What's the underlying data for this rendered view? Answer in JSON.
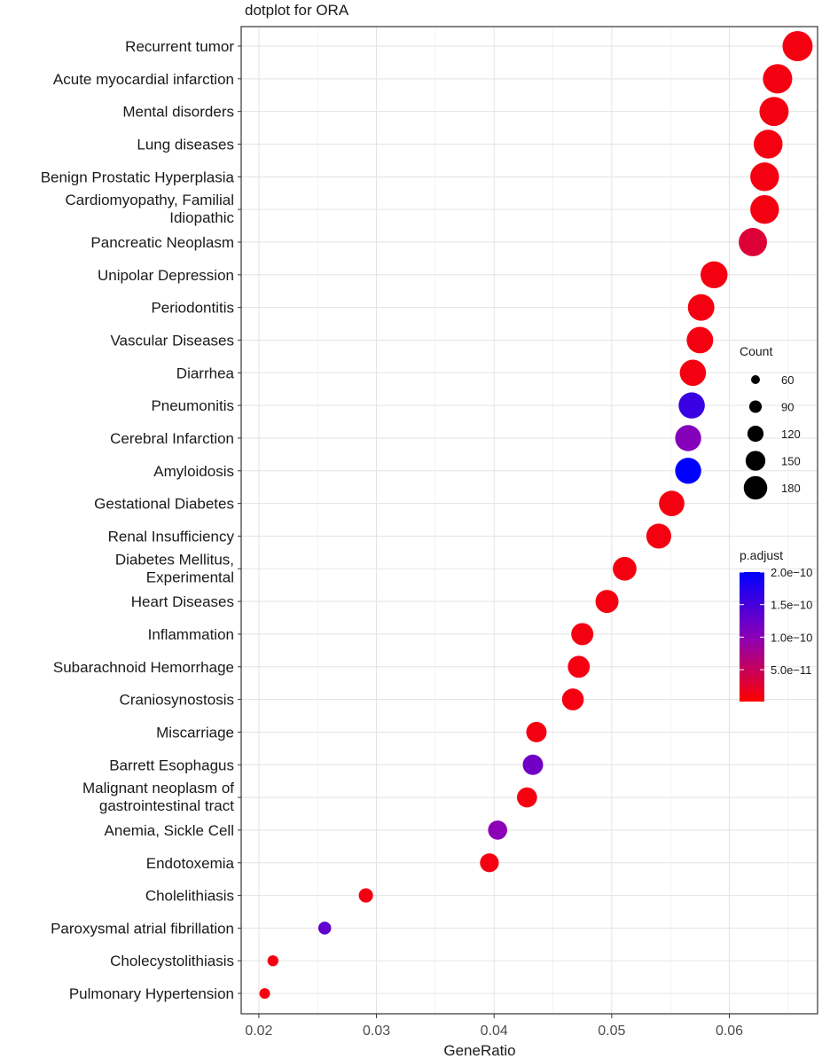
{
  "chart_data": {
    "type": "scatter",
    "title": "dotplot for ORA",
    "xlabel": "GeneRatio",
    "ylabel": "",
    "xlim": [
      0.0185,
      0.0675
    ],
    "x_ticks": [
      0.02,
      0.03,
      0.04,
      0.05,
      0.06
    ],
    "x_tick_labels": [
      "0.02",
      "0.03",
      "0.04",
      "0.05",
      "0.06"
    ],
    "grid": true,
    "categories": [
      {
        "lines": [
          "Recurrent tumor"
        ],
        "x": 0.0658,
        "count": 180,
        "p_adjust": 1e-11
      },
      {
        "lines": [
          "Acute myocardial infarction"
        ],
        "x": 0.0641,
        "count": 175,
        "p_adjust": 1e-11
      },
      {
        "lines": [
          "Mental disorders"
        ],
        "x": 0.0638,
        "count": 174,
        "p_adjust": 1e-11
      },
      {
        "lines": [
          "Lung diseases"
        ],
        "x": 0.0633,
        "count": 172,
        "p_adjust": 1e-11
      },
      {
        "lines": [
          "Benign Prostatic Hyperplasia"
        ],
        "x": 0.063,
        "count": 171,
        "p_adjust": 1e-11
      },
      {
        "lines": [
          "Cardiomyopathy, Familial",
          "Idiopathic"
        ],
        "x": 0.063,
        "count": 171,
        "p_adjust": 1e-11
      },
      {
        "lines": [
          "Pancreatic Neoplasm"
        ],
        "x": 0.062,
        "count": 168,
        "p_adjust": 3e-11
      },
      {
        "lines": [
          "Unipolar Depression"
        ],
        "x": 0.0587,
        "count": 160,
        "p_adjust": 1e-11
      },
      {
        "lines": [
          "Periodontitis"
        ],
        "x": 0.0576,
        "count": 157,
        "p_adjust": 1e-11
      },
      {
        "lines": [
          "Vascular Diseases"
        ],
        "x": 0.0575,
        "count": 157,
        "p_adjust": 1e-11
      },
      {
        "lines": [
          "Diarrhea"
        ],
        "x": 0.0569,
        "count": 155,
        "p_adjust": 1e-11
      },
      {
        "lines": [
          "Pneumonitis"
        ],
        "x": 0.0568,
        "count": 155,
        "p_adjust": 1.6e-10
      },
      {
        "lines": [
          "Cerebral Infarction"
        ],
        "x": 0.0565,
        "count": 154,
        "p_adjust": 1.05e-10
      },
      {
        "lines": [
          "Amyloidosis"
        ],
        "x": 0.0565,
        "count": 154,
        "p_adjust": 2e-10
      },
      {
        "lines": [
          "Gestational Diabetes"
        ],
        "x": 0.0551,
        "count": 150,
        "p_adjust": 1e-11
      },
      {
        "lines": [
          "Renal Insufficiency"
        ],
        "x": 0.054,
        "count": 147,
        "p_adjust": 1e-11
      },
      {
        "lines": [
          "Diabetes Mellitus,",
          "Experimental"
        ],
        "x": 0.0511,
        "count": 139,
        "p_adjust": 1e-11
      },
      {
        "lines": [
          "Heart Diseases"
        ],
        "x": 0.0496,
        "count": 135,
        "p_adjust": 1e-11
      },
      {
        "lines": [
          "Inflammation"
        ],
        "x": 0.0475,
        "count": 129,
        "p_adjust": 1e-11
      },
      {
        "lines": [
          "Subarachnoid Hemorrhage"
        ],
        "x": 0.0472,
        "count": 128,
        "p_adjust": 1e-11
      },
      {
        "lines": [
          "Craniosynostosis"
        ],
        "x": 0.0467,
        "count": 127,
        "p_adjust": 1e-11
      },
      {
        "lines": [
          "Miscarriage"
        ],
        "x": 0.0436,
        "count": 118,
        "p_adjust": 1e-11
      },
      {
        "lines": [
          "Barrett Esophagus"
        ],
        "x": 0.0433,
        "count": 118,
        "p_adjust": 1.2e-10
      },
      {
        "lines": [
          "Malignant neoplasm of",
          "gastrointestinal tract"
        ],
        "x": 0.0428,
        "count": 116,
        "p_adjust": 1e-11
      },
      {
        "lines": [
          "Anemia, Sickle Cell"
        ],
        "x": 0.0403,
        "count": 110,
        "p_adjust": 1e-10
      },
      {
        "lines": [
          "Endotoxemia"
        ],
        "x": 0.0396,
        "count": 108,
        "p_adjust": 1e-11
      },
      {
        "lines": [
          "Cholelithiasis"
        ],
        "x": 0.0291,
        "count": 79,
        "p_adjust": 1e-11
      },
      {
        "lines": [
          "Paroxysmal atrial fibrillation"
        ],
        "x": 0.0256,
        "count": 70,
        "p_adjust": 1.3e-10
      },
      {
        "lines": [
          "Cholecystolithiasis"
        ],
        "x": 0.0212,
        "count": 58,
        "p_adjust": 1e-11
      },
      {
        "lines": [
          "Pulmonary Hypertension"
        ],
        "x": 0.0205,
        "count": 56,
        "p_adjust": 1e-11
      }
    ],
    "size_legend": {
      "title": "Count",
      "values": [
        60,
        90,
        120,
        150,
        180
      ],
      "labels": [
        "60",
        "90",
        "120",
        "150",
        "180"
      ]
    },
    "color_legend": {
      "title": "p.adjust",
      "min": 1e-12,
      "max": 2e-10,
      "low_color": "#ff0000",
      "high_color": "#0000ff",
      "ticks": [
        2e-10,
        1.5e-10,
        1e-10,
        5e-11
      ],
      "tick_labels": [
        "2.0e−10",
        "1.5e−10",
        "1.0e−10",
        "5.0e−11"
      ]
    }
  }
}
